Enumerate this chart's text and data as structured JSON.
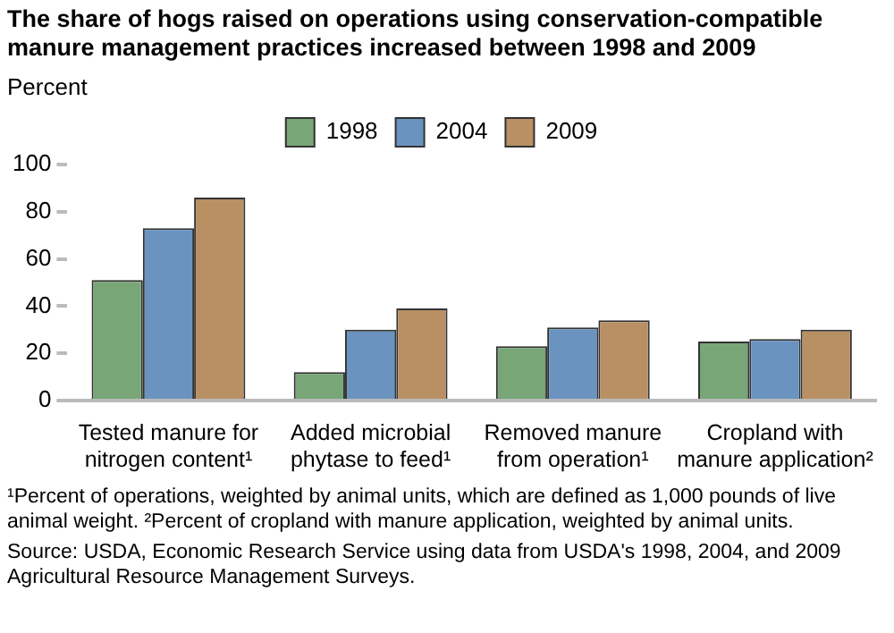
{
  "chart_data": {
    "type": "bar",
    "title": "The share of hogs raised on operations using conservation-compatible manure management practices increased between 1998 and 2009",
    "ylabel": "Percent",
    "categories": [
      "Tested manure for\nnitrogen content¹",
      "Added microbial\nphytase to feed¹",
      "Removed manure\nfrom operation¹",
      "Cropland with\nmanure application²"
    ],
    "series": [
      {
        "name": "1998",
        "color": "#78a677",
        "values": [
          51,
          12,
          23,
          25
        ]
      },
      {
        "name": "2004",
        "color": "#6a93c0",
        "values": [
          73,
          30,
          31,
          26
        ]
      },
      {
        "name": "2009",
        "color": "#b89064",
        "values": [
          86,
          39,
          34,
          30
        ]
      }
    ],
    "ylim": [
      0,
      100
    ],
    "yticks": [
      0,
      20,
      40,
      60,
      80,
      100
    ],
    "grid": false,
    "legend": "top",
    "annotations": [
      "¹Percent of operations, weighted by animal units, which are defined as 1,000 pounds of live animal weight. ²Percent of cropland with manure application, weighted by animal units.",
      "Source: USDA, Economic Research Service using data from USDA's 1998, 2004, and 2009 Agricultural Resource Management Surveys."
    ]
  }
}
